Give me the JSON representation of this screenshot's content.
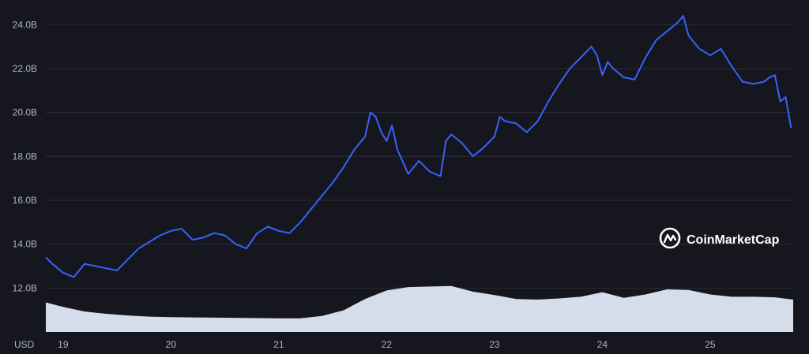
{
  "chart_data": {
    "type": "line",
    "title": "",
    "xlabel": "",
    "ylabel": "",
    "currency_label": "USD",
    "ylim": [
      10.0,
      24.8
    ],
    "y_ticks": [
      "12.0B",
      "14.0B",
      "16.0B",
      "18.0B",
      "20.0B",
      "22.0B",
      "24.0B"
    ],
    "y_tick_values": [
      12,
      14,
      16,
      18,
      20,
      22,
      24
    ],
    "x_ticks": [
      "19",
      "20",
      "21",
      "22",
      "23",
      "24",
      "25"
    ],
    "x_tick_values": [
      19,
      20,
      21,
      22,
      23,
      24,
      25
    ],
    "xlim": [
      18.84,
      25.77
    ],
    "grid": true,
    "series": [
      {
        "name": "",
        "color": "#3861fb",
        "x": [
          18.84,
          18.9,
          19.0,
          19.1,
          19.2,
          19.3,
          19.4,
          19.5,
          19.6,
          19.7,
          19.8,
          19.9,
          20.0,
          20.1,
          20.2,
          20.3,
          20.4,
          20.5,
          20.6,
          20.7,
          20.8,
          20.9,
          21.0,
          21.1,
          21.2,
          21.3,
          21.4,
          21.5,
          21.6,
          21.7,
          21.8,
          21.85,
          21.9,
          21.95,
          22.0,
          22.05,
          22.1,
          22.2,
          22.3,
          22.4,
          22.5,
          22.55,
          22.6,
          22.7,
          22.8,
          22.9,
          23.0,
          23.05,
          23.1,
          23.2,
          23.3,
          23.4,
          23.5,
          23.6,
          23.7,
          23.8,
          23.9,
          23.95,
          24.0,
          24.05,
          24.1,
          24.2,
          24.3,
          24.4,
          24.5,
          24.6,
          24.7,
          24.75,
          24.8,
          24.9,
          25.0,
          25.1,
          25.2,
          25.3,
          25.4,
          25.5,
          25.55,
          25.6,
          25.65,
          25.7,
          25.75
        ],
        "values": [
          13.4,
          13.1,
          12.7,
          12.5,
          13.1,
          13.0,
          12.9,
          12.8,
          13.3,
          13.8,
          14.1,
          14.4,
          14.6,
          14.7,
          14.2,
          14.3,
          14.5,
          14.4,
          14.0,
          13.8,
          14.5,
          14.8,
          14.6,
          14.5,
          15.0,
          15.6,
          16.2,
          16.8,
          17.5,
          18.3,
          18.9,
          20.0,
          19.8,
          19.1,
          18.7,
          19.4,
          18.3,
          17.2,
          17.8,
          17.3,
          17.1,
          18.7,
          19.0,
          18.6,
          18.0,
          18.4,
          18.9,
          19.8,
          19.6,
          19.5,
          19.1,
          19.6,
          20.5,
          21.3,
          22.0,
          22.5,
          23.0,
          22.6,
          21.7,
          22.3,
          22.0,
          21.6,
          21.5,
          22.5,
          23.3,
          23.7,
          24.1,
          24.4,
          23.5,
          22.9,
          22.6,
          22.9,
          22.1,
          21.4,
          21.3,
          21.4,
          21.6,
          21.7,
          20.5,
          20.7,
          19.3
        ]
      }
    ],
    "volume": {
      "color": "#d5dcea",
      "x": [
        18.84,
        19.0,
        19.2,
        19.4,
        19.6,
        19.8,
        20.0,
        20.5,
        21.0,
        21.2,
        21.4,
        21.6,
        21.8,
        22.0,
        22.2,
        22.4,
        22.6,
        22.8,
        23.0,
        23.2,
        23.4,
        23.6,
        23.8,
        24.0,
        24.2,
        24.4,
        24.6,
        24.8,
        25.0,
        25.2,
        25.4,
        25.6,
        25.77
      ],
      "values": [
        0.52,
        0.44,
        0.36,
        0.32,
        0.29,
        0.27,
        0.26,
        0.25,
        0.24,
        0.24,
        0.28,
        0.38,
        0.58,
        0.73,
        0.79,
        0.8,
        0.81,
        0.71,
        0.65,
        0.58,
        0.57,
        0.59,
        0.62,
        0.7,
        0.6,
        0.66,
        0.75,
        0.74,
        0.66,
        0.62,
        0.62,
        0.61,
        0.57
      ]
    }
  },
  "watermark": {
    "text": "CoinMarketCap"
  }
}
